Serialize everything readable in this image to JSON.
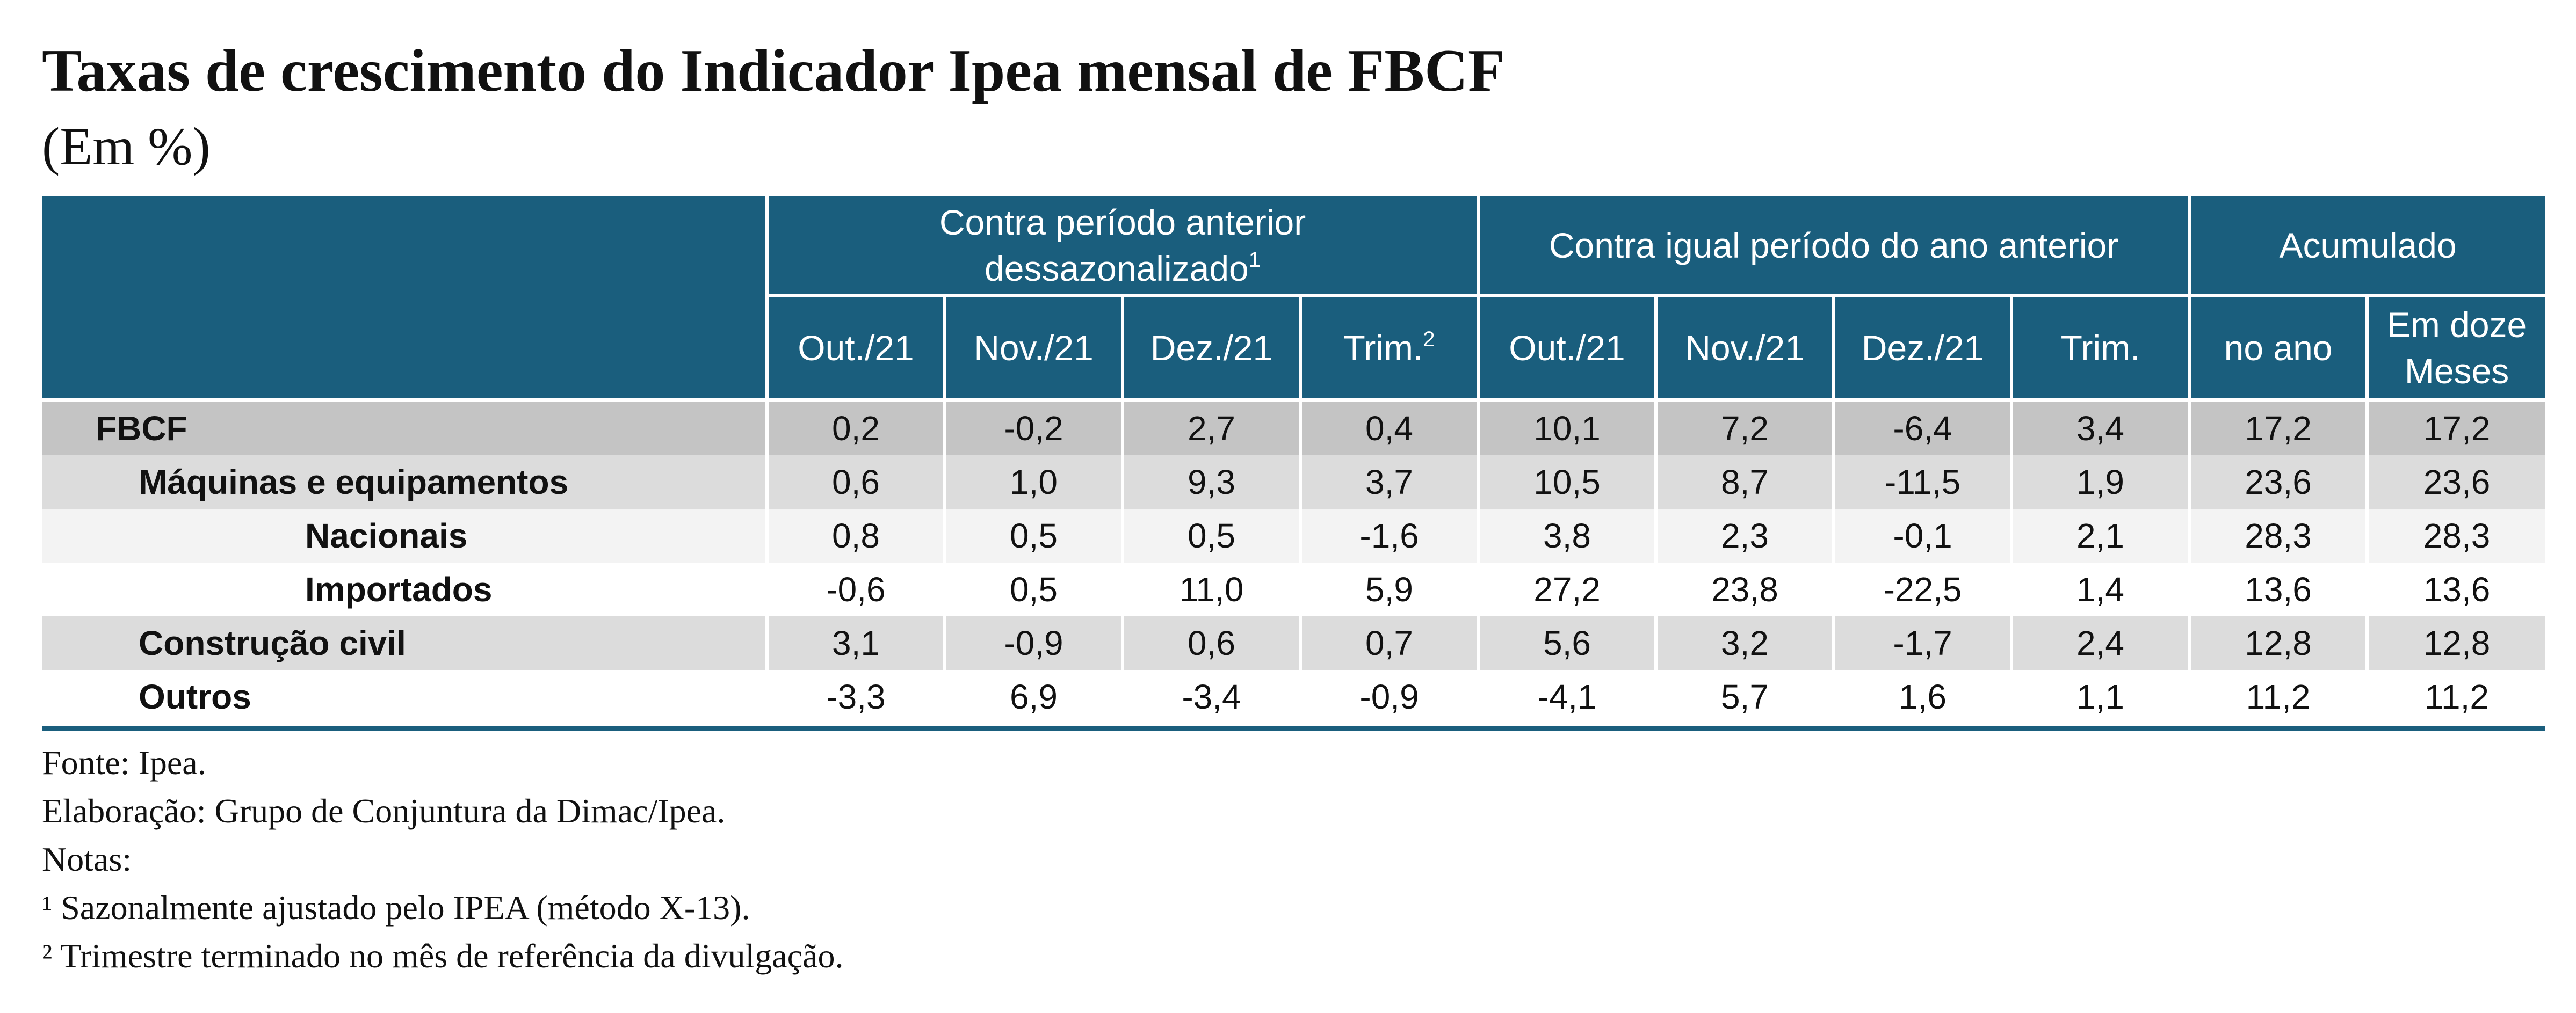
{
  "title": "Taxas de crescimento do Indicador Ipea mensal de FBCF",
  "subtitle": "(Em %)",
  "table": {
    "group_headers": {
      "g1_line1": "Contra período anterior",
      "g1_line2": "dessazonalizado",
      "g1_sup": "1",
      "g2": "Contra igual período do ano anterior",
      "g3": "Acumulado"
    },
    "sub_headers": {
      "g1_c1": "Out./21",
      "g1_c2": "Nov./21",
      "g1_c3": "Dez./21",
      "g1_c4": "Trim.",
      "g1_c4_sup": "2",
      "g2_c1": "Out./21",
      "g2_c2": "Nov./21",
      "g2_c3": "Dez./21",
      "g2_c4": "Trim.",
      "g3_c1": "no ano",
      "g3_c2_line1": "Em doze",
      "g3_c2_line2": "Meses"
    },
    "rows": [
      {
        "label": "FBCF",
        "values": [
          "0,2",
          "-0,2",
          "2,7",
          "0,4",
          "10,1",
          "7,2",
          "-6,4",
          "3,4",
          "17,2",
          "17,2"
        ]
      },
      {
        "label": "Máquinas e equipamentos",
        "values": [
          "0,6",
          "1,0",
          "9,3",
          "3,7",
          "10,5",
          "8,7",
          "-11,5",
          "1,9",
          "23,6",
          "23,6"
        ]
      },
      {
        "label": "Nacionais",
        "values": [
          "0,8",
          "0,5",
          "0,5",
          "-1,6",
          "3,8",
          "2,3",
          "-0,1",
          "2,1",
          "28,3",
          "28,3"
        ]
      },
      {
        "label": "Importados",
        "values": [
          "-0,6",
          "0,5",
          "11,0",
          "5,9",
          "27,2",
          "23,8",
          "-22,5",
          "1,4",
          "13,6",
          "13,6"
        ]
      },
      {
        "label": "Construção civil",
        "values": [
          "3,1",
          "-0,9",
          "0,6",
          "0,7",
          "5,6",
          "3,2",
          "-1,7",
          "2,4",
          "12,8",
          "12,8"
        ]
      },
      {
        "label": "Outros",
        "values": [
          "-3,3",
          "6,9",
          "-3,4",
          "-0,9",
          "-4,1",
          "5,7",
          "1,6",
          "1,1",
          "11,2",
          "11,2"
        ]
      }
    ]
  },
  "notes": {
    "source": "Fonte: Ipea.",
    "elaboration": "Elaboração: Grupo de Conjuntura da Dimac/Ipea.",
    "notes_label": "Notas:",
    "note1": "¹ Sazonalmente ajustado pelo IPEA (método X-13).",
    "note2": "² Trimestre terminado no mês de referência da divulgação."
  },
  "colors": {
    "header_bg": "#1a5e7d",
    "header_text": "#ffffff",
    "row_dark": "#c4c4c4",
    "row_mid": "#dcdcdc",
    "row_light": "#f3f3f3"
  }
}
